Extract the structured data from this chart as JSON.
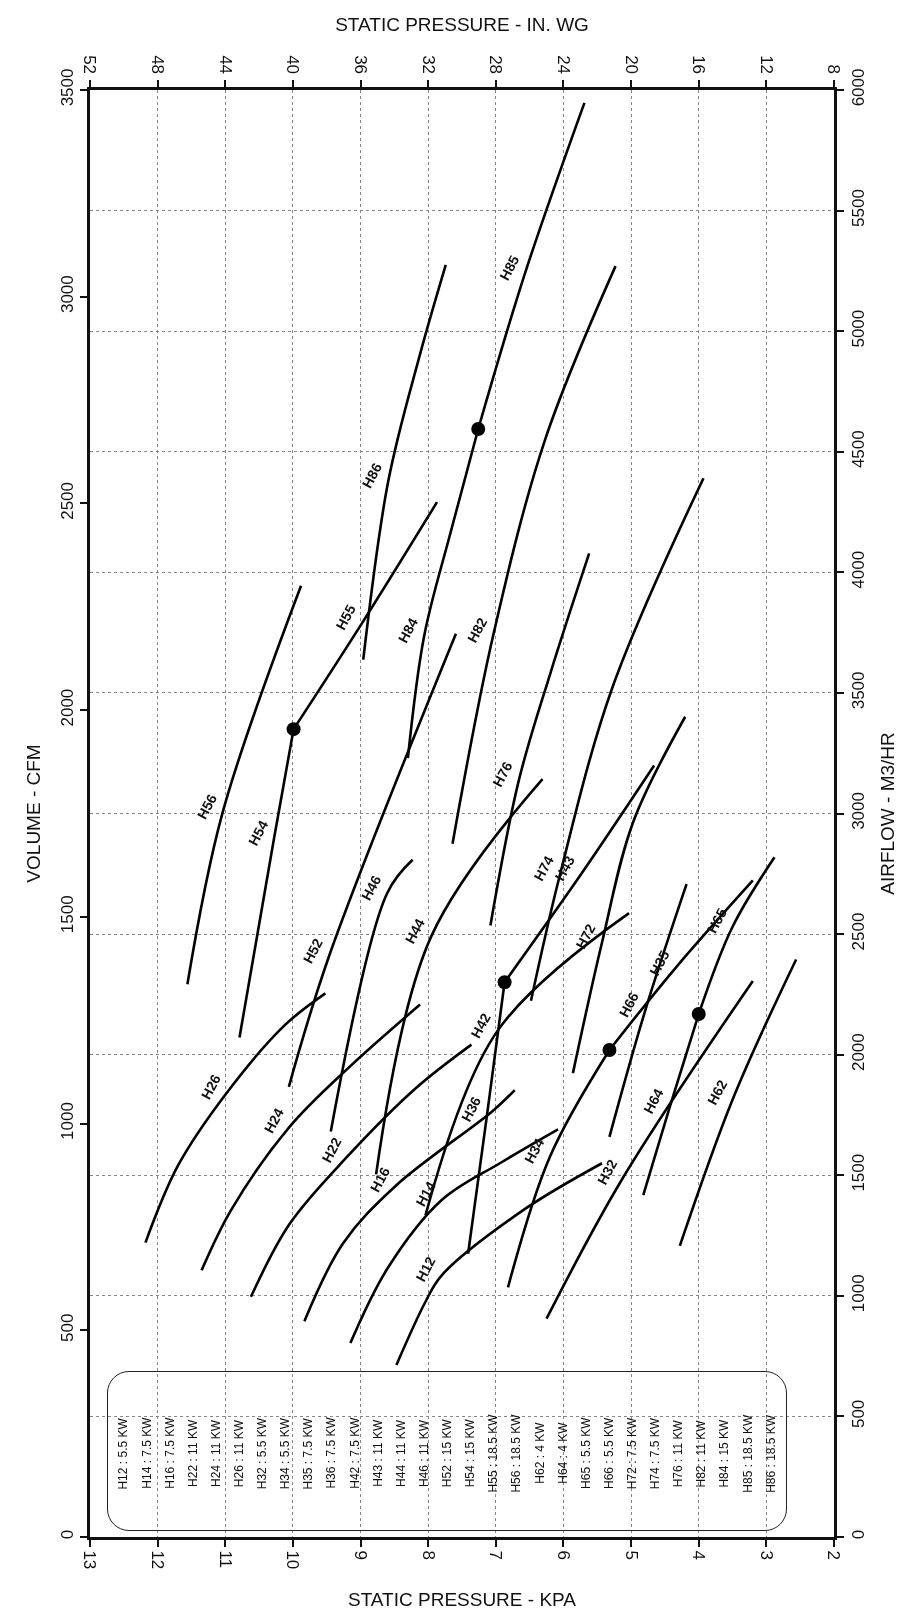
{
  "chart_data": {
    "type": "line",
    "xlabel": "STATIC PRESSURE - KPA",
    "x2label": "STATIC PRESSURE - IN. WG",
    "ylabel": "VOLUME - CFM",
    "y2label": "AIRFLOW - M3/HR",
    "xlim": [
      13,
      2
    ],
    "xticks": [
      13,
      12,
      11,
      10,
      9,
      8,
      7,
      6,
      5,
      4,
      3,
      2
    ],
    "x2lim": [
      52,
      8
    ],
    "x2ticks": [
      52,
      48,
      44,
      40,
      36,
      32,
      28,
      24,
      20,
      16,
      12,
      8
    ],
    "ylim": [
      0,
      3500
    ],
    "yticks": [
      0,
      500,
      1000,
      1500,
      2000,
      2500,
      3000,
      3500
    ],
    "y2lim": [
      0,
      6000
    ],
    "y2ticks": [
      0,
      500,
      1000,
      1500,
      2000,
      2500,
      3000,
      3500,
      4000,
      4500,
      5000,
      5500,
      6000
    ],
    "grid": true,
    "legend": false,
    "line_style": "solid",
    "series": [
      {
        "name": "H12",
        "color": "#000000",
        "x": [
          8.47,
          8.04,
          7.8,
          6.6,
          5.43
        ],
        "values": [
          416,
          569,
          633,
          790,
          904
        ]
      },
      {
        "name": "H14",
        "color": "#000000",
        "x": [
          9.15,
          8.6,
          7.8,
          6.94,
          6.08
        ],
        "values": [
          469,
          650,
          815,
          904,
          986
        ]
      },
      {
        "name": "H16",
        "color": "#000000",
        "x": [
          9.83,
          9.26,
          8.47,
          7.05,
          6.72
        ],
        "values": [
          522,
          710,
          851,
          1030,
          1081
        ]
      },
      {
        "name": "H22",
        "color": "#000000",
        "x": [
          10.62,
          10.05,
          9.19,
          8.18,
          7.36
        ],
        "values": [
          581,
          757,
          921,
          1086,
          1191
        ]
      },
      {
        "name": "H24",
        "color": "#000000",
        "x": [
          11.35,
          10.91,
          10.05,
          9.19,
          8.12
        ],
        "values": [
          645,
          792,
          992,
          1133,
          1288
        ]
      },
      {
        "name": "H26",
        "color": "#000000",
        "x": [
          12.18,
          11.7,
          10.98,
          10.12,
          9.52
        ],
        "values": [
          712,
          898,
          1074,
          1238,
          1315
        ]
      },
      {
        "name": "H32",
        "color": "#000000",
        "x": [
          6.25,
          5.12,
          3.2
        ],
        "values": [
          528,
          869,
          1345
        ]
      },
      {
        "name": "H34",
        "color": "#000000",
        "x": [
          6.82,
          6.2,
          5.32
        ],
        "values": [
          604,
          920,
          1178
        ]
      },
      {
        "name": "H35",
        "color": "#000000",
        "x": [
          5.32,
          4.35,
          3.2
        ],
        "values": [
          1178,
          1375,
          1588
        ]
      },
      {
        "name": "H36",
        "color": "#000000",
        "x": [
          7.41,
          7.13,
          6.87
        ],
        "values": [
          685,
          1021,
          1342
        ]
      },
      {
        "name": "H42",
        "color": "#000000",
        "x": [
          8.04,
          6.98,
          5.03
        ],
        "values": [
          778,
          1223,
          1509
        ]
      },
      {
        "name": "H43",
        "color": "#000000",
        "x": [
          6.87,
          5.74,
          4.66
        ],
        "values": [
          1342,
          1603,
          1866
        ]
      },
      {
        "name": "H44",
        "color": "#000000",
        "x": [
          8.77,
          7.96,
          6.31
        ],
        "values": [
          877,
          1451,
          1833
        ]
      },
      {
        "name": "H46",
        "color": "#000000",
        "x": [
          9.44,
          8.61,
          8.23
        ],
        "values": [
          981,
          1556,
          1638
        ]
      },
      {
        "name": "H52",
        "color": "#000000",
        "x": [
          10.06,
          9.47,
          7.59
        ],
        "values": [
          1089,
          1403,
          2185
        ]
      },
      {
        "name": "H54",
        "color": "#000000",
        "x": [
          10.79,
          10.28,
          9.99
        ],
        "values": [
          1208,
          1689,
          1954
        ]
      },
      {
        "name": "H55",
        "color": "#000000",
        "x": [
          9.99,
          8.98,
          7.87
        ],
        "values": [
          1954,
          2210,
          2503
        ]
      },
      {
        "name": "H56",
        "color": "#000000",
        "x": [
          11.56,
          11.04,
          9.88
        ],
        "values": [
          1337,
          1752,
          2301
        ]
      },
      {
        "name": "H62",
        "color": "#000000",
        "x": [
          4.28,
          3.49,
          2.56
        ],
        "values": [
          704,
          1062,
          1397
        ]
      },
      {
        "name": "H64",
        "color": "#000000",
        "x": [
          4.82,
          4.43,
          4.0
        ],
        "values": [
          827,
          1039,
          1265
        ]
      },
      {
        "name": "H65",
        "color": "#000000",
        "x": [
          4.0,
          3.5,
          2.88
        ],
        "values": [
          1265,
          1476,
          1644
        ]
      },
      {
        "name": "H66",
        "color": "#000000",
        "x": [
          5.32,
          4.79,
          4.18
        ],
        "values": [
          968,
          1274,
          1579
        ]
      },
      {
        "name": "H72",
        "color": "#000000",
        "x": [
          5.86,
          5.43,
          4.97,
          4.2
        ],
        "values": [
          1122,
          1438,
          1729,
          1984
        ]
      },
      {
        "name": "H74",
        "color": "#000000",
        "x": [
          6.48,
          6.05,
          5.28,
          3.93
        ],
        "values": [
          1297,
          1603,
          2053,
          2561
        ]
      },
      {
        "name": "H76",
        "color": "#000000",
        "x": [
          7.08,
          6.66,
          6.19,
          5.62
        ],
        "values": [
          1479,
          1830,
          2091,
          2379
        ]
      },
      {
        "name": "H82",
        "color": "#000000",
        "x": [
          7.64,
          7.04,
          6.27,
          5.23
        ],
        "values": [
          1677,
          2180,
          2655,
          3074
        ]
      },
      {
        "name": "H84",
        "color": "#000000",
        "x": [
          8.3,
          8.06,
          7.67,
          7.26
        ],
        "values": [
          1884,
          2179,
          2429,
          2680
        ]
      },
      {
        "name": "H85",
        "color": "#000000",
        "x": [
          7.26,
          6.57,
          5.69
        ],
        "values": [
          2680,
          3056,
          3469
        ]
      },
      {
        "name": "H86",
        "color": "#000000",
        "x": [
          8.96,
          8.59,
          8.13,
          7.74
        ],
        "values": [
          2122,
          2554,
          2855,
          3077
        ]
      },
      {
        "type": "scatter",
        "marker": "circle",
        "color": "#000000",
        "x": [
          9.99,
          7.26,
          6.87,
          5.32,
          4.0
        ],
        "values": [
          1954,
          2680,
          1342,
          1178,
          1265
        ]
      }
    ],
    "annotations": [
      "H12 : 5.5 KW",
      "H14 : 7.5 KW",
      "H16 : 7.5 KW",
      "H22 : 11 KW",
      "H24 : 11 KW",
      "H26 : 11 KW",
      "H32 : 5.5 KW",
      "H34 : 5.5 KW",
      "H35 : 7.5 KW",
      "H36 : 7.5 KW",
      "H42 : 7.5 KW",
      "H43 : 11 KW",
      "H44 : 11 KW",
      "H46 : 11 KW",
      "H52 : 15 KW",
      "H54 : 15 KW",
      "H55 : 18.5 KW",
      "H56 : 18.5 KW",
      "H62 : 4 KW",
      "H64 : 4 KW",
      "H65 : 5.5 KW",
      "H66 : 5.5 KW",
      "H72 : 7.5 KW",
      "H74 : 7.5 KW",
      "H76 : 11 KW",
      "H82 : 11 KW",
      "H84 : 15 KW",
      "H85 : 18.5 KW",
      "H86 : 18.5 KW"
    ]
  }
}
